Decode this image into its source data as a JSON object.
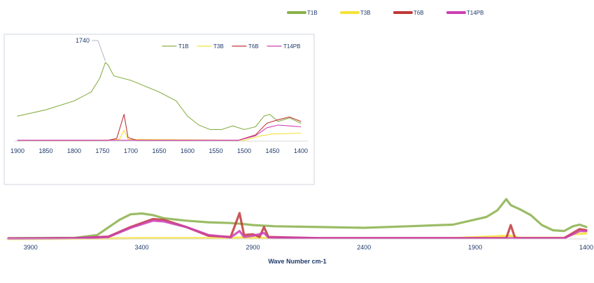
{
  "chart_data": [
    {
      "type": "line",
      "name": "main-spectrum",
      "title": "",
      "xlabel": "Wave Number cm-1",
      "ylabel": "",
      "xlim": [
        4000,
        1400
      ],
      "x_reversed": true,
      "ylim": [
        0,
        1
      ],
      "x_ticks": [
        3900,
        3400,
        2900,
        2400,
        1900,
        1400
      ],
      "legend": {
        "position": "top-right",
        "entries": [
          "T1B",
          "T3B",
          "T6B",
          "T14PB"
        ]
      },
      "grid": false,
      "series": [
        {
          "name": "T1B",
          "color": "#8ab04a",
          "points": [
            [
              4000,
              0.02
            ],
            [
              3700,
              0.03
            ],
            [
              3600,
              0.1
            ],
            [
              3500,
              0.48
            ],
            [
              3450,
              0.62
            ],
            [
              3400,
              0.64
            ],
            [
              3350,
              0.6
            ],
            [
              3300,
              0.52
            ],
            [
              3200,
              0.46
            ],
            [
              3100,
              0.42
            ],
            [
              3000,
              0.4
            ],
            [
              2950,
              0.38
            ],
            [
              2900,
              0.35
            ],
            [
              2800,
              0.32
            ],
            [
              2600,
              0.3
            ],
            [
              2400,
              0.28
            ],
            [
              2200,
              0.32
            ],
            [
              2000,
              0.36
            ],
            [
              1850,
              0.55
            ],
            [
              1800,
              0.72
            ],
            [
              1760,
              1.0
            ],
            [
              1740,
              0.85
            ],
            [
              1700,
              0.75
            ],
            [
              1650,
              0.6
            ],
            [
              1600,
              0.35
            ],
            [
              1550,
              0.22
            ],
            [
              1500,
              0.2
            ],
            [
              1460,
              0.32
            ],
            [
              1430,
              0.36
            ],
            [
              1400,
              0.3
            ]
          ]
        },
        {
          "name": "T3B",
          "color": "#f5e23a",
          "points": [
            [
              4000,
              0.0
            ],
            [
              3600,
              0.01
            ],
            [
              3400,
              0.02
            ],
            [
              3000,
              0.02
            ],
            [
              2950,
              0.04
            ],
            [
              2900,
              0.03
            ],
            [
              2600,
              0.02
            ],
            [
              2000,
              0.02
            ],
            [
              1740,
              0.08
            ],
            [
              1700,
              0.03
            ],
            [
              1500,
              0.03
            ],
            [
              1460,
              0.12
            ],
            [
              1400,
              0.14
            ]
          ]
        },
        {
          "name": "T6B",
          "color": "#c0383a",
          "points": [
            [
              4000,
              0.01
            ],
            [
              3700,
              0.02
            ],
            [
              3550,
              0.06
            ],
            [
              3450,
              0.3
            ],
            [
              3350,
              0.5
            ],
            [
              3300,
              0.48
            ],
            [
              3200,
              0.3
            ],
            [
              3100,
              0.08
            ],
            [
              3000,
              0.05
            ],
            [
              2960,
              0.65
            ],
            [
              2940,
              0.1
            ],
            [
              2900,
              0.12
            ],
            [
              2870,
              0.05
            ],
            [
              2850,
              0.3
            ],
            [
              2830,
              0.05
            ],
            [
              2600,
              0.02
            ],
            [
              2000,
              0.02
            ],
            [
              1760,
              0.02
            ],
            [
              1740,
              0.35
            ],
            [
              1720,
              0.02
            ],
            [
              1500,
              0.02
            ],
            [
              1460,
              0.15
            ],
            [
              1430,
              0.25
            ],
            [
              1400,
              0.22
            ]
          ]
        },
        {
          "name": "T14PB",
          "color": "#cc3fb4",
          "points": [
            [
              4000,
              0.01
            ],
            [
              3700,
              0.02
            ],
            [
              3550,
              0.05
            ],
            [
              3450,
              0.28
            ],
            [
              3350,
              0.46
            ],
            [
              3300,
              0.44
            ],
            [
              3200,
              0.3
            ],
            [
              3100,
              0.1
            ],
            [
              3000,
              0.04
            ],
            [
              2960,
              0.2
            ],
            [
              2940,
              0.05
            ],
            [
              2900,
              0.08
            ],
            [
              2850,
              0.15
            ],
            [
              2830,
              0.04
            ],
            [
              2600,
              0.02
            ],
            [
              2000,
              0.02
            ],
            [
              1740,
              0.02
            ],
            [
              1500,
              0.02
            ],
            [
              1460,
              0.12
            ],
            [
              1430,
              0.2
            ],
            [
              1400,
              0.2
            ]
          ]
        }
      ]
    },
    {
      "type": "line",
      "name": "inset-spectrum",
      "title": "",
      "xlabel": "",
      "ylabel": "",
      "xlim": [
        1900,
        1400
      ],
      "x_reversed": true,
      "ylim": [
        0,
        1
      ],
      "x_ticks": [
        1900,
        1850,
        1800,
        1750,
        1700,
        1650,
        1600,
        1550,
        1500,
        1450,
        1400
      ],
      "annotation": {
        "label": "1740",
        "x": 1745,
        "y": 0.88
      },
      "legend": {
        "position": "top-right",
        "entries": [
          "T1B",
          "T3B",
          "T6B",
          "T14PB"
        ]
      },
      "grid": false,
      "series": [
        {
          "name": "T1B",
          "color": "#8ab04a",
          "points": [
            [
              1900,
              0.28
            ],
            [
              1850,
              0.35
            ],
            [
              1800,
              0.45
            ],
            [
              1770,
              0.55
            ],
            [
              1755,
              0.7
            ],
            [
              1745,
              0.88
            ],
            [
              1740,
              0.85
            ],
            [
              1730,
              0.73
            ],
            [
              1700,
              0.68
            ],
            [
              1650,
              0.55
            ],
            [
              1620,
              0.45
            ],
            [
              1600,
              0.28
            ],
            [
              1580,
              0.18
            ],
            [
              1560,
              0.13
            ],
            [
              1540,
              0.13
            ],
            [
              1520,
              0.17
            ],
            [
              1500,
              0.13
            ],
            [
              1480,
              0.16
            ],
            [
              1465,
              0.28
            ],
            [
              1455,
              0.3
            ],
            [
              1440,
              0.22
            ],
            [
              1420,
              0.26
            ],
            [
              1400,
              0.2
            ]
          ]
        },
        {
          "name": "T3B",
          "color": "#f5e23a",
          "points": [
            [
              1900,
              0.0
            ],
            [
              1750,
              0.01
            ],
            [
              1720,
              0.02
            ],
            [
              1712,
              0.12
            ],
            [
              1705,
              0.02
            ],
            [
              1500,
              0.01
            ],
            [
              1470,
              0.06
            ],
            [
              1450,
              0.08
            ],
            [
              1400,
              0.09
            ]
          ]
        },
        {
          "name": "T6B",
          "color": "#c0383a",
          "points": [
            [
              1900,
              0.01
            ],
            [
              1740,
              0.01
            ],
            [
              1725,
              0.03
            ],
            [
              1712,
              0.3
            ],
            [
              1705,
              0.04
            ],
            [
              1690,
              0.01
            ],
            [
              1510,
              0.01
            ],
            [
              1480,
              0.07
            ],
            [
              1460,
              0.2
            ],
            [
              1440,
              0.24
            ],
            [
              1420,
              0.27
            ],
            [
              1400,
              0.22
            ]
          ]
        },
        {
          "name": "T14PB",
          "color": "#cc3fb4",
          "points": [
            [
              1900,
              0.01
            ],
            [
              1750,
              0.01
            ],
            [
              1700,
              0.01
            ],
            [
              1510,
              0.01
            ],
            [
              1480,
              0.06
            ],
            [
              1460,
              0.15
            ],
            [
              1440,
              0.18
            ],
            [
              1420,
              0.17
            ],
            [
              1400,
              0.16
            ]
          ]
        }
      ]
    }
  ]
}
